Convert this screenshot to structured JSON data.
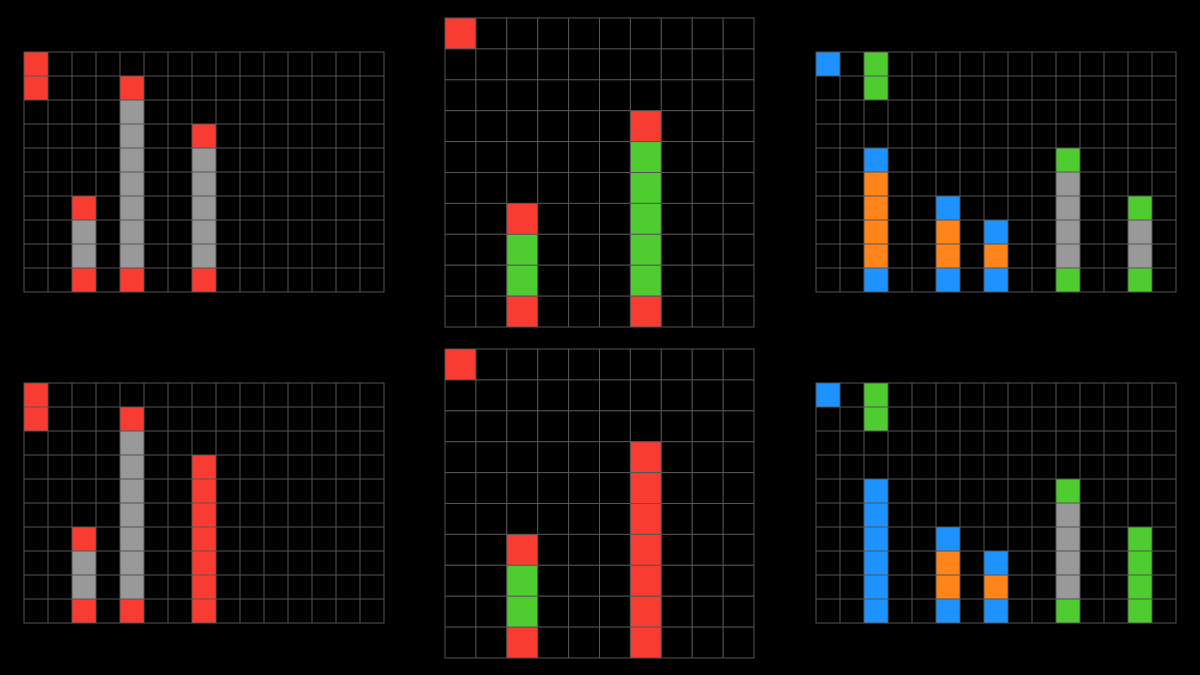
{
  "palette": {
    "0": "#000000",
    "1": "#1e93ff",
    "2": "#f93c31",
    "3": "#4fcc30",
    "5": "#999999",
    "7": "#ff851b"
  },
  "grids": [
    {
      "rows": [
        [
          2,
          0,
          0,
          0,
          0,
          0,
          0,
          0,
          0,
          0,
          0,
          0,
          0,
          0,
          0
        ],
        [
          2,
          0,
          0,
          0,
          2,
          0,
          0,
          0,
          0,
          0,
          0,
          0,
          0,
          0,
          0
        ],
        [
          0,
          0,
          0,
          0,
          5,
          0,
          0,
          0,
          0,
          0,
          0,
          0,
          0,
          0,
          0
        ],
        [
          0,
          0,
          0,
          0,
          5,
          0,
          0,
          2,
          0,
          0,
          0,
          0,
          0,
          0,
          0
        ],
        [
          0,
          0,
          0,
          0,
          5,
          0,
          0,
          5,
          0,
          0,
          0,
          0,
          0,
          0,
          0
        ],
        [
          0,
          0,
          0,
          0,
          5,
          0,
          0,
          5,
          0,
          0,
          0,
          0,
          0,
          0,
          0
        ],
        [
          0,
          0,
          2,
          0,
          5,
          0,
          0,
          5,
          0,
          0,
          0,
          0,
          0,
          0,
          0
        ],
        [
          0,
          0,
          5,
          0,
          5,
          0,
          0,
          5,
          0,
          0,
          0,
          0,
          0,
          0,
          0
        ],
        [
          0,
          0,
          5,
          0,
          5,
          0,
          0,
          5,
          0,
          0,
          0,
          0,
          0,
          0,
          0
        ],
        [
          0,
          0,
          2,
          0,
          2,
          0,
          0,
          2,
          0,
          0,
          0,
          0,
          0,
          0,
          0
        ]
      ]
    },
    {
      "rows": [
        [
          2,
          0,
          0,
          0,
          0,
          0,
          0,
          0,
          0,
          0
        ],
        [
          0,
          0,
          0,
          0,
          0,
          0,
          0,
          0,
          0,
          0
        ],
        [
          0,
          0,
          0,
          0,
          0,
          0,
          0,
          0,
          0,
          0
        ],
        [
          0,
          0,
          0,
          0,
          0,
          0,
          2,
          0,
          0,
          0
        ],
        [
          0,
          0,
          0,
          0,
          0,
          0,
          3,
          0,
          0,
          0
        ],
        [
          0,
          0,
          0,
          0,
          0,
          0,
          3,
          0,
          0,
          0
        ],
        [
          0,
          0,
          2,
          0,
          0,
          0,
          3,
          0,
          0,
          0
        ],
        [
          0,
          0,
          3,
          0,
          0,
          0,
          3,
          0,
          0,
          0
        ],
        [
          0,
          0,
          3,
          0,
          0,
          0,
          3,
          0,
          0,
          0
        ],
        [
          0,
          0,
          2,
          0,
          0,
          0,
          2,
          0,
          0,
          0
        ]
      ]
    },
    {
      "rows": [
        [
          1,
          0,
          3,
          0,
          0,
          0,
          0,
          0,
          0,
          0,
          0,
          0,
          0,
          0,
          0
        ],
        [
          0,
          0,
          3,
          0,
          0,
          0,
          0,
          0,
          0,
          0,
          0,
          0,
          0,
          0,
          0
        ],
        [
          0,
          0,
          0,
          0,
          0,
          0,
          0,
          0,
          0,
          0,
          0,
          0,
          0,
          0,
          0
        ],
        [
          0,
          0,
          0,
          0,
          0,
          0,
          0,
          0,
          0,
          0,
          0,
          0,
          0,
          0,
          0
        ],
        [
          0,
          0,
          1,
          0,
          0,
          0,
          0,
          0,
          0,
          0,
          3,
          0,
          0,
          0,
          0
        ],
        [
          0,
          0,
          7,
          0,
          0,
          0,
          0,
          0,
          0,
          0,
          5,
          0,
          0,
          0,
          0
        ],
        [
          0,
          0,
          7,
          0,
          0,
          1,
          0,
          0,
          0,
          0,
          5,
          0,
          0,
          3,
          0
        ],
        [
          0,
          0,
          7,
          0,
          0,
          7,
          0,
          1,
          0,
          0,
          5,
          0,
          0,
          5,
          0
        ],
        [
          0,
          0,
          7,
          0,
          0,
          7,
          0,
          7,
          0,
          0,
          5,
          0,
          0,
          5,
          0
        ],
        [
          0,
          0,
          1,
          0,
          0,
          1,
          0,
          1,
          0,
          0,
          3,
          0,
          0,
          3,
          0
        ]
      ]
    },
    {
      "rows": [
        [
          2,
          0,
          0,
          0,
          0,
          0,
          0,
          0,
          0,
          0,
          0,
          0,
          0,
          0,
          0
        ],
        [
          2,
          0,
          0,
          0,
          2,
          0,
          0,
          0,
          0,
          0,
          0,
          0,
          0,
          0,
          0
        ],
        [
          0,
          0,
          0,
          0,
          5,
          0,
          0,
          0,
          0,
          0,
          0,
          0,
          0,
          0,
          0
        ],
        [
          0,
          0,
          0,
          0,
          5,
          0,
          0,
          2,
          0,
          0,
          0,
          0,
          0,
          0,
          0
        ],
        [
          0,
          0,
          0,
          0,
          5,
          0,
          0,
          2,
          0,
          0,
          0,
          0,
          0,
          0,
          0
        ],
        [
          0,
          0,
          0,
          0,
          5,
          0,
          0,
          2,
          0,
          0,
          0,
          0,
          0,
          0,
          0
        ],
        [
          0,
          0,
          2,
          0,
          5,
          0,
          0,
          2,
          0,
          0,
          0,
          0,
          0,
          0,
          0
        ],
        [
          0,
          0,
          5,
          0,
          5,
          0,
          0,
          2,
          0,
          0,
          0,
          0,
          0,
          0,
          0
        ],
        [
          0,
          0,
          5,
          0,
          5,
          0,
          0,
          2,
          0,
          0,
          0,
          0,
          0,
          0,
          0
        ],
        [
          0,
          0,
          2,
          0,
          2,
          0,
          0,
          2,
          0,
          0,
          0,
          0,
          0,
          0,
          0
        ]
      ]
    },
    {
      "rows": [
        [
          2,
          0,
          0,
          0,
          0,
          0,
          0,
          0,
          0,
          0
        ],
        [
          0,
          0,
          0,
          0,
          0,
          0,
          0,
          0,
          0,
          0
        ],
        [
          0,
          0,
          0,
          0,
          0,
          0,
          0,
          0,
          0,
          0
        ],
        [
          0,
          0,
          0,
          0,
          0,
          0,
          2,
          0,
          0,
          0
        ],
        [
          0,
          0,
          0,
          0,
          0,
          0,
          2,
          0,
          0,
          0
        ],
        [
          0,
          0,
          0,
          0,
          0,
          0,
          2,
          0,
          0,
          0
        ],
        [
          0,
          0,
          2,
          0,
          0,
          0,
          2,
          0,
          0,
          0
        ],
        [
          0,
          0,
          3,
          0,
          0,
          0,
          2,
          0,
          0,
          0
        ],
        [
          0,
          0,
          3,
          0,
          0,
          0,
          2,
          0,
          0,
          0
        ],
        [
          0,
          0,
          2,
          0,
          0,
          0,
          2,
          0,
          0,
          0
        ]
      ]
    },
    {
      "rows": [
        [
          1,
          0,
          3,
          0,
          0,
          0,
          0,
          0,
          0,
          0,
          0,
          0,
          0,
          0,
          0
        ],
        [
          0,
          0,
          3,
          0,
          0,
          0,
          0,
          0,
          0,
          0,
          0,
          0,
          0,
          0,
          0
        ],
        [
          0,
          0,
          0,
          0,
          0,
          0,
          0,
          0,
          0,
          0,
          0,
          0,
          0,
          0,
          0
        ],
        [
          0,
          0,
          0,
          0,
          0,
          0,
          0,
          0,
          0,
          0,
          0,
          0,
          0,
          0,
          0
        ],
        [
          0,
          0,
          1,
          0,
          0,
          0,
          0,
          0,
          0,
          0,
          3,
          0,
          0,
          0,
          0
        ],
        [
          0,
          0,
          1,
          0,
          0,
          0,
          0,
          0,
          0,
          0,
          5,
          0,
          0,
          0,
          0
        ],
        [
          0,
          0,
          1,
          0,
          0,
          1,
          0,
          0,
          0,
          0,
          5,
          0,
          0,
          3,
          0
        ],
        [
          0,
          0,
          1,
          0,
          0,
          7,
          0,
          1,
          0,
          0,
          5,
          0,
          0,
          3,
          0
        ],
        [
          0,
          0,
          1,
          0,
          0,
          7,
          0,
          7,
          0,
          0,
          5,
          0,
          0,
          3,
          0
        ],
        [
          0,
          0,
          1,
          0,
          0,
          1,
          0,
          1,
          0,
          0,
          3,
          0,
          0,
          3,
          0
        ]
      ]
    }
  ]
}
